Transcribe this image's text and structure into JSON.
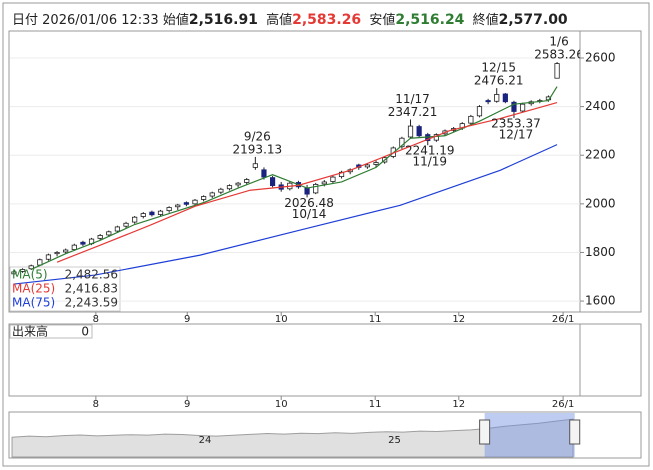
{
  "chart_data": {
    "type": "candlestick",
    "header": {
      "date_label": "日付",
      "date": "2026/01/06 12:33",
      "open_label": "始値",
      "open": "2,516.91",
      "high_label": "高値",
      "high": "2,583.26",
      "low_label": "安値",
      "low": "2,516.24",
      "close_label": "終値",
      "close": "2,577.00"
    },
    "open": [
      1712,
      1722,
      1733,
      1748,
      1772,
      1795,
      1802,
      1812,
      1842,
      1836,
      1858,
      1872,
      1888,
      1908,
      1925,
      1948,
      1966,
      1956,
      1972,
      1988,
      2005,
      2000,
      2018,
      2032,
      2048,
      2062,
      2078,
      2088,
      2150,
      2140,
      2108,
      2078,
      2062,
      2088,
      2065,
      2045,
      2082,
      2092,
      2112,
      2132,
      2160,
      2152,
      2162,
      2172,
      2195,
      2235,
      2275,
      2318,
      2285,
      2262,
      2288,
      2302,
      2312,
      2332,
      2362,
      2425,
      2422,
      2452,
      2418,
      2382,
      2412,
      2422,
      2428,
      2516.91
    ],
    "high": [
      1726,
      1735,
      1750,
      1775,
      1795,
      1806,
      1816,
      1836,
      1848,
      1860,
      1876,
      1890,
      1910,
      1926,
      1950,
      1966,
      1972,
      1975,
      1990,
      2000,
      2010,
      2020,
      2035,
      2050,
      2066,
      2080,
      2090,
      2106,
      2193.13,
      2150,
      2115,
      2090,
      2092,
      2095,
      2078,
      2086,
      2098,
      2116,
      2136,
      2146,
      2165,
      2168,
      2178,
      2196,
      2236,
      2276,
      2347.21,
      2325,
      2292,
      2290,
      2306,
      2316,
      2336,
      2366,
      2406,
      2432,
      2476.21,
      2456,
      2424,
      2416,
      2426,
      2432,
      2446,
      2583.26
    ],
    "low": [
      1708,
      1716,
      1728,
      1744,
      1766,
      1784,
      1795,
      1806,
      1826,
      1830,
      1850,
      1864,
      1880,
      1898,
      1918,
      1940,
      1948,
      1950,
      1964,
      1975,
      1990,
      1994,
      2010,
      2024,
      2040,
      2055,
      2068,
      2080,
      2140,
      2100,
      2068,
      2050,
      2055,
      2062,
      2026.48,
      2040,
      2072,
      2085,
      2104,
      2122,
      2140,
      2144,
      2150,
      2165,
      2188,
      2226,
      2268,
      2272,
      2241.19,
      2255,
      2280,
      2294,
      2304,
      2325,
      2356,
      2410,
      2416,
      2414,
      2353.37,
      2376,
      2404,
      2414,
      2420,
      2516.24
    ],
    "close": [
      1720,
      1730,
      1745,
      1770,
      1790,
      1800,
      1810,
      1830,
      1834,
      1855,
      1870,
      1885,
      1905,
      1920,
      1945,
      1960,
      1955,
      1970,
      1985,
      1995,
      1998,
      2015,
      2030,
      2045,
      2060,
      2075,
      2085,
      2100,
      2165,
      2110,
      2075,
      2060,
      2085,
      2070,
      2040,
      2080,
      2090,
      2110,
      2130,
      2140,
      2150,
      2160,
      2170,
      2190,
      2230,
      2270,
      2320,
      2280,
      2260,
      2285,
      2300,
      2310,
      2330,
      2360,
      2400,
      2420,
      2450,
      2420,
      2380,
      2410,
      2420,
      2425,
      2440,
      2577
    ],
    "up_color": "#ffffff",
    "down_color": "#1a237e",
    "edge_color": "#222222",
    "ylim": [
      1555,
      2707
    ],
    "yticks": [
      1600,
      1800,
      2000,
      2200,
      2400,
      2600
    ],
    "grid": true,
    "xlim": [
      -0.46,
      65.66
    ],
    "xticks": [
      {
        "value": 9.5,
        "label": "8"
      },
      {
        "value": 20.1,
        "label": "9"
      },
      {
        "value": 31.0,
        "label": "10"
      },
      {
        "value": 41.9,
        "label": "11"
      },
      {
        "value": 51.6,
        "label": "12"
      },
      {
        "value": 63.7,
        "label": "26/1"
      }
    ],
    "series": [
      {
        "name": "MA(5)",
        "color": "#2e7d32",
        "legend_value": {
          "value": 2482.56,
          "label": "2,482.56"
        },
        "x": [
          2,
          6,
          10,
          14,
          18,
          22,
          26,
          30,
          34,
          38,
          42,
          46,
          50,
          54,
          58,
          62,
          63
        ],
        "values": [
          1730,
          1795,
          1850,
          1915,
          1960,
          2005,
          2065,
          2120,
          2065,
          2090,
          2150,
          2270,
          2280,
          2340,
          2410,
          2425,
          2482.56
        ]
      },
      {
        "name": "MA(25)",
        "color": "#e53935",
        "legend_value": {
          "value": 2416.83,
          "label": "2,416.83"
        },
        "x": [
          5,
          10,
          15.8,
          21,
          27.4,
          33,
          39,
          44.8,
          50.6,
          56.4,
          63
        ],
        "values": [
          1760,
          1830,
          1912,
          1990,
          2056,
          2076,
          2138,
          2220,
          2302,
          2351,
          2416.83
        ]
      },
      {
        "name": "MA(75)",
        "color": "#1e3fd6",
        "legend_value": {
          "value": 2243.59,
          "label": "2,243.59"
        },
        "x": [
          0,
          9.4,
          21.6,
          33.2,
          44.8,
          56.4,
          63
        ],
        "values": [
          1670,
          1707,
          1789,
          1892,
          1994,
          2138,
          2243.59
        ]
      }
    ],
    "annotations": [
      {
        "x": 28,
        "y": 2193.13,
        "label": "9/26",
        "position": "above"
      },
      {
        "x": 34,
        "y": 2026.48,
        "label": "10/14",
        "position": "below"
      },
      {
        "x": 46,
        "y": 2347.21,
        "label": "11/17",
        "position": "above"
      },
      {
        "x": 48,
        "y": 2241.19,
        "label": "11/19",
        "position": "below"
      },
      {
        "x": 56,
        "y": 2476.21,
        "label": "12/15",
        "position": "above"
      },
      {
        "x": 58,
        "y": 2353.37,
        "label": "12/17",
        "position": "below"
      },
      {
        "x": 63,
        "y": 2583.26,
        "label": "1/6",
        "position": "above"
      }
    ],
    "volume": {
      "label": "出来高",
      "value": 0
    },
    "navigator": {
      "color": "#9e9e9e",
      "window_color": "#6f8fe0",
      "xlim": [
        -0.12,
        36.94
      ],
      "ylim": [
        0,
        3000
      ],
      "xticks": [
        {
          "value": 11.35,
          "label": "24"
        },
        {
          "value": 22.5,
          "label": "25"
        }
      ],
      "window": [
        27.8,
        33.1
      ],
      "values": [
        1350,
        1420,
        1380,
        1460,
        1500,
        1440,
        1480,
        1520,
        1490,
        1560,
        1530,
        1470,
        1420,
        1480,
        1540,
        1600,
        1560,
        1620,
        1590,
        1650,
        1610,
        1680,
        1720,
        1700,
        1760,
        1740,
        1800,
        1850,
        1950,
        2100,
        2200,
        2300,
        2450,
        2580
      ]
    }
  }
}
